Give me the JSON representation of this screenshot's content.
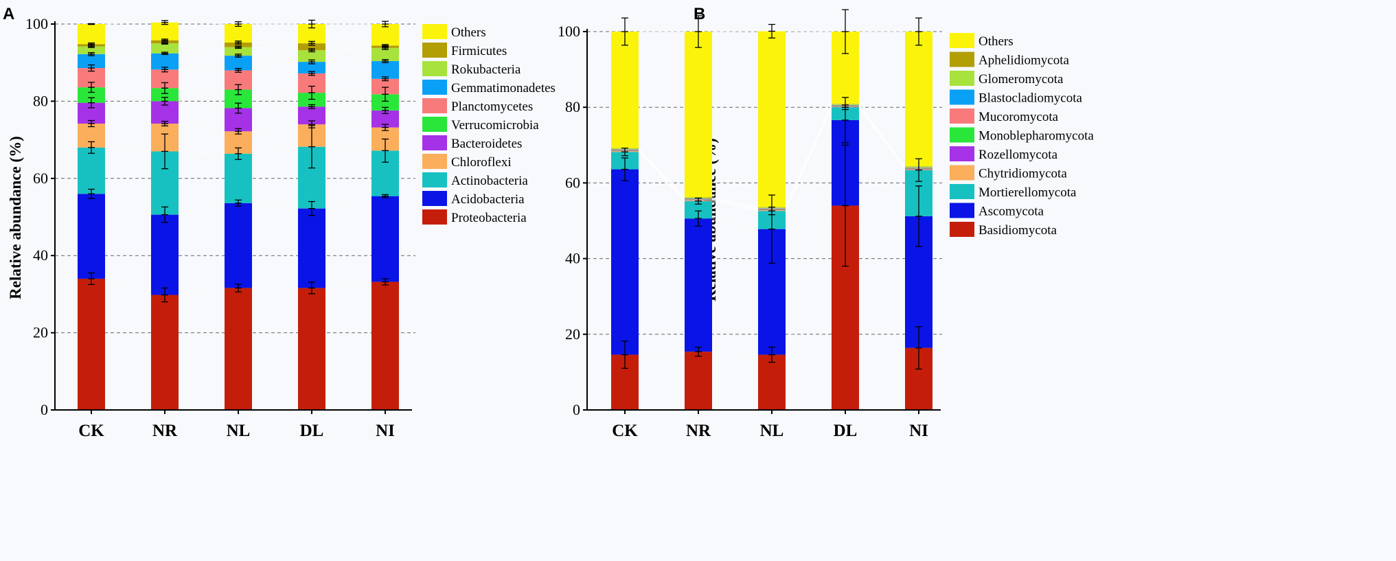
{
  "chart_data": [
    {
      "panel": "A",
      "type": "bar",
      "stacked": true,
      "title": "",
      "xlabel": "",
      "ylabel": "Relative abundance (%)",
      "ylim": [
        0,
        100
      ],
      "yticks": [
        0,
        20,
        40,
        60,
        80,
        100
      ],
      "grid": true,
      "legend_position": "right",
      "categories": [
        "CK",
        "NR",
        "NL",
        "DL",
        "NI"
      ],
      "series": [
        {
          "name": "Proteobacteria",
          "color": "#c41e0a",
          "values": [
            34,
            29.8,
            31.6,
            31.6,
            33.2
          ],
          "errors": [
            1.5,
            1.8,
            1.0,
            1.5,
            0.8
          ]
        },
        {
          "name": "Acidobacteria",
          "color": "#0a14e6",
          "values": [
            22,
            20.8,
            22,
            20.6,
            22.2
          ],
          "errors": [
            1.2,
            2.0,
            0.8,
            1.8,
            0.4
          ]
        },
        {
          "name": "Actinobacteria",
          "color": "#17c1c1",
          "values": [
            12,
            16.4,
            12.8,
            16,
            11.8
          ],
          "errors": [
            1.5,
            4.5,
            1.5,
            5.5,
            3.0
          ]
        },
        {
          "name": "Chloroflexi",
          "color": "#fbae5c",
          "values": [
            6.2,
            7.2,
            5.8,
            5.8,
            6.0
          ],
          "errors": [
            0.8,
            0.6,
            0.7,
            0.9,
            0.8
          ]
        },
        {
          "name": "Bacteroidetes",
          "color": "#a532e6",
          "values": [
            5.4,
            5.8,
            6.0,
            4.6,
            4.4
          ],
          "errors": [
            1.3,
            1.0,
            1.3,
            0.5,
            0.8
          ]
        },
        {
          "name": "Verrucomicrobia",
          "color": "#2ae63a",
          "values": [
            4.0,
            3.4,
            4.8,
            3.6,
            4.2
          ],
          "errors": [
            1.3,
            1.4,
            1.3,
            1.7,
            1.8
          ]
        },
        {
          "name": "Planctomycetes",
          "color": "#f97a7a",
          "values": [
            5.0,
            4.8,
            5.0,
            5.0,
            4.0
          ],
          "errors": [
            0.8,
            0.6,
            0.5,
            0.5,
            0.5
          ]
        },
        {
          "name": "Gemmatimonadetes",
          "color": "#0aa0f5",
          "values": [
            3.6,
            4.2,
            3.8,
            3.0,
            4.6
          ],
          "errors": [
            0.4,
            0.3,
            0.4,
            0.5,
            0.4
          ]
        },
        {
          "name": "Rokubacteria",
          "color": "#a8e23c",
          "values": [
            2.0,
            2.6,
            2.2,
            3.0,
            3.4
          ],
          "errors": [
            0.3,
            0.2,
            0.3,
            0.4,
            0.4
          ]
        },
        {
          "name": "Firmicutes",
          "color": "#b29e05",
          "values": [
            0.6,
            0.8,
            1.2,
            1.8,
            0.6
          ],
          "errors": [
            0.3,
            0.3,
            0.4,
            0.5,
            0.3
          ]
        },
        {
          "name": "Others",
          "color": "#fbf40a",
          "values": [
            5.2,
            4.6,
            4.8,
            5.0,
            5.6
          ],
          "errors": [
            0.1,
            0.5,
            0.6,
            1.0,
            0.7
          ]
        }
      ]
    },
    {
      "panel": "B",
      "type": "bar",
      "stacked": true,
      "title": "",
      "xlabel": "",
      "ylabel": "Relative abundance (%)",
      "ylim": [
        0,
        100
      ],
      "yticks": [
        0,
        20,
        40,
        60,
        80,
        100
      ],
      "grid": true,
      "legend_position": "right",
      "categories": [
        "CK",
        "NR",
        "NL",
        "DL",
        "NI"
      ],
      "series": [
        {
          "name": "Basidiomycota",
          "color": "#c41e0a",
          "values": [
            14.6,
            15.4,
            14.6,
            54,
            16.4
          ],
          "errors": [
            3.6,
            1.2,
            2.0,
            16.0,
            5.6
          ]
        },
        {
          "name": "Ascomycota",
          "color": "#0a14e6",
          "values": [
            49,
            35.2,
            33.2,
            22.6,
            34.8
          ],
          "errors": [
            3.0,
            2.0,
            9.0,
            6.0,
            8.0
          ]
        },
        {
          "name": "Mortierellomycota",
          "color": "#17c1c1",
          "values": [
            4.6,
            4.6,
            4.8,
            3.4,
            12.2
          ],
          "errors": [
            1.0,
            0.8,
            1.0,
            0.6,
            3.0
          ]
        },
        {
          "name": "Chytridiomycota",
          "color": "#fbae5c",
          "values": [
            0.2,
            0.2,
            0.2,
            0.1,
            0.2
          ],
          "errors": [
            0,
            0,
            0,
            0,
            0
          ]
        },
        {
          "name": "Rozellomycota",
          "color": "#a532e6",
          "values": [
            0.1,
            0.1,
            0.1,
            0.1,
            0.1
          ],
          "errors": [
            0,
            0,
            0,
            0,
            0
          ]
        },
        {
          "name": "Monoblepharomycota",
          "color": "#2ae63a",
          "values": [
            0.1,
            0.1,
            0.1,
            0.1,
            0.1
          ],
          "errors": [
            0,
            0,
            0,
            0,
            0
          ]
        },
        {
          "name": "Mucoromycota",
          "color": "#f97a7a",
          "values": [
            0.2,
            0.2,
            0.2,
            0.2,
            0.2
          ],
          "errors": [
            0,
            0,
            0,
            0,
            0
          ]
        },
        {
          "name": "Blastocladiomycota",
          "color": "#0aa0f5",
          "values": [
            0.1,
            0.1,
            0.1,
            0.1,
            0.1
          ],
          "errors": [
            0,
            0,
            0,
            0,
            0
          ]
        },
        {
          "name": "Glomeromycota",
          "color": "#a8e23c",
          "values": [
            0.2,
            0.2,
            0.2,
            0.2,
            0.2
          ],
          "errors": [
            0,
            0,
            0,
            0,
            0
          ]
        },
        {
          "name": "Aphelidiomycota",
          "color": "#b29e05",
          "values": [
            0.1,
            0.1,
            0.1,
            0.1,
            0.1
          ],
          "errors": [
            0,
            0,
            0,
            0,
            0
          ]
        },
        {
          "name": "Others",
          "color": "#fbf40a",
          "values": [
            30.8,
            43.8,
            46.5,
            19.1,
            35.6
          ],
          "errors": [
            3.6,
            4.2,
            1.8,
            5.8,
            3.6
          ]
        }
      ]
    }
  ]
}
